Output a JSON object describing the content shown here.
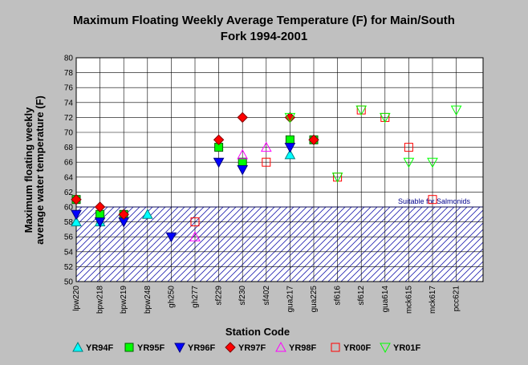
{
  "chart_data": {
    "type": "scatter",
    "title_line1": "Maximum Floating Weekly Average Temperature (F) for Main/South",
    "title_line2": "Fork 1994-2001",
    "xlabel": "Station Code",
    "ylabel_line1": "Maximum floating weekly",
    "ylabel_line2": "average water temperature (F)",
    "ylim": [
      50,
      80
    ],
    "yticks": [
      50,
      52,
      54,
      56,
      58,
      60,
      62,
      64,
      66,
      68,
      70,
      72,
      74,
      76,
      78,
      80
    ],
    "grid": true,
    "legend_position": "bottom",
    "categories": [
      "lpw220",
      "bpw218",
      "bpw219",
      "bpw248",
      "gh250",
      "gh277",
      "sf229",
      "sf230",
      "sf402",
      "gua217",
      "gua225",
      "sf616",
      "sf612",
      "gua614",
      "mck615",
      "mck617",
      "pcc621"
    ],
    "suitable_band": {
      "from": 50,
      "to": 60,
      "label": "Suitable for Salmonids",
      "color": "#2020b0"
    },
    "series": [
      {
        "name": "YR94F",
        "marker": "triangle-up",
        "fill": "#00ffff",
        "stroke": "#008080",
        "hollow": false,
        "points": [
          [
            0,
            58
          ],
          [
            1,
            58
          ],
          [
            3,
            59
          ],
          [
            9,
            67
          ]
        ]
      },
      {
        "name": "YR95F",
        "marker": "square",
        "fill": "#00ff00",
        "stroke": "#006000",
        "hollow": false,
        "points": [
          [
            0,
            61
          ],
          [
            1,
            59
          ],
          [
            2,
            59
          ],
          [
            6,
            68
          ],
          [
            7,
            66
          ],
          [
            9,
            69
          ],
          [
            10,
            69
          ]
        ]
      },
      {
        "name": "YR96F",
        "marker": "triangle-down",
        "fill": "#0000ff",
        "stroke": "#000080",
        "hollow": false,
        "points": [
          [
            0,
            59
          ],
          [
            1,
            58
          ],
          [
            2,
            58
          ],
          [
            4,
            56
          ],
          [
            6,
            66
          ],
          [
            7,
            65
          ],
          [
            9,
            68
          ]
        ]
      },
      {
        "name": "YR97F",
        "marker": "diamond",
        "fill": "#ff0000",
        "stroke": "#800000",
        "hollow": false,
        "points": [
          [
            0,
            61
          ],
          [
            1,
            60
          ],
          [
            2,
            59
          ],
          [
            6,
            69
          ],
          [
            7,
            72
          ],
          [
            9,
            72
          ],
          [
            10,
            69
          ]
        ]
      },
      {
        "name": "YR98F",
        "marker": "triangle-up",
        "fill": "none",
        "stroke": "#ff00ff",
        "hollow": true,
        "points": [
          [
            5,
            56
          ],
          [
            7,
            67
          ],
          [
            8,
            68
          ]
        ]
      },
      {
        "name": "YR00F",
        "marker": "square",
        "fill": "none",
        "stroke": "#ff0000",
        "hollow": true,
        "points": [
          [
            5,
            58
          ],
          [
            8,
            66
          ],
          [
            11,
            64
          ],
          [
            12,
            73
          ],
          [
            13,
            72
          ],
          [
            14,
            68
          ],
          [
            15,
            61
          ]
        ]
      },
      {
        "name": "YR01F",
        "marker": "triangle-down",
        "fill": "none",
        "stroke": "#00ff00",
        "hollow": true,
        "points": [
          [
            9,
            72
          ],
          [
            11,
            64
          ],
          [
            12,
            73
          ],
          [
            13,
            72
          ],
          [
            14,
            66
          ],
          [
            15,
            66
          ],
          [
            16,
            73
          ]
        ]
      }
    ]
  }
}
